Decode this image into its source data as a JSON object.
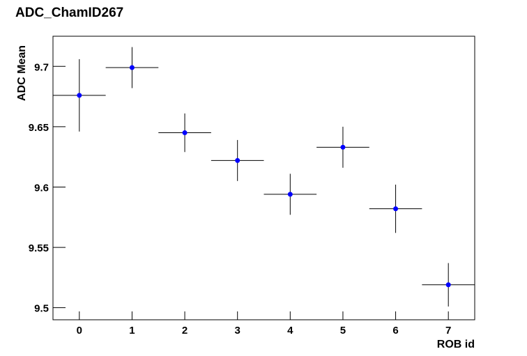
{
  "chart_data": {
    "type": "errorbar",
    "title": "ADC_ChamID267",
    "xlabel": "ROB id",
    "ylabel": "ADC Mean",
    "x": [
      0,
      1,
      2,
      3,
      4,
      5,
      6,
      7
    ],
    "series": [
      {
        "color": "#0000ff",
        "errcolor": "#000000",
        "values": [
          9.676,
          9.699,
          9.645,
          9.622,
          9.594,
          9.633,
          9.582,
          9.519
        ],
        "errors": [
          0.03,
          0.017,
          0.016,
          0.017,
          0.017,
          0.017,
          0.02,
          0.018
        ],
        "xerr": [
          0.5,
          0.5,
          0.5,
          0.5,
          0.5,
          0.5,
          0.5,
          0.5
        ]
      }
    ],
    "xlim": [
      -0.5,
      7.5
    ],
    "xticks": [
      0,
      1,
      2,
      3,
      4,
      5,
      6,
      7
    ],
    "ylim": [
      9.49,
      9.725
    ],
    "yticks": [
      9.5,
      9.55,
      9.6,
      9.65,
      9.7
    ]
  }
}
